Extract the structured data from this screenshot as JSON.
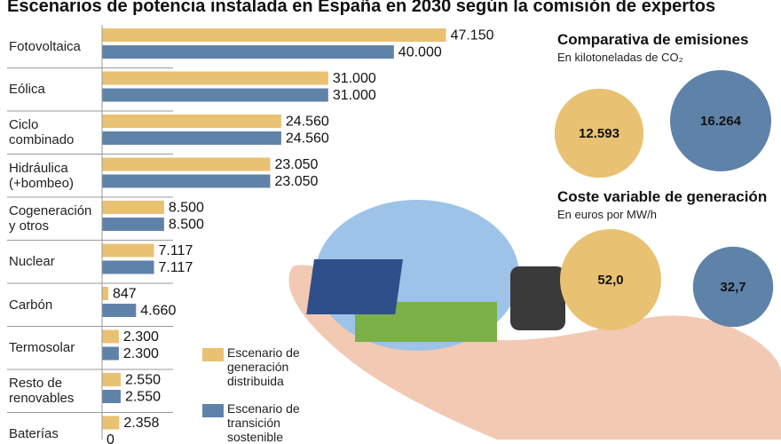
{
  "chart_data": [
    {
      "type": "bar",
      "orientation": "horizontal",
      "title": "Escenarios de potencia instalada en España en 2030 según la comisión de expertos",
      "categories": [
        "Fotovoltaica",
        "Eólica",
        "Ciclo combinado",
        "Hidráulica (+bombeo)",
        "Cogeneración y otros",
        "Nuclear",
        "Carbón",
        "Termosolar",
        "Resto de renovables",
        "Baterías"
      ],
      "series": [
        {
          "name": "Escenario de generación distribuida",
          "color": "#e9c172",
          "values": [
            47150,
            31000,
            24560,
            23050,
            8500,
            7117,
            847,
            2300,
            2550,
            2358
          ],
          "value_labels": [
            "47.150",
            "31.000",
            "24.560",
            "23.050",
            "8.500",
            "7.117",
            "847",
            "2.300",
            "2.550",
            "2.358"
          ]
        },
        {
          "name": "Escenario de transición sostenible",
          "color": "#5f82a9",
          "values": [
            40000,
            31000,
            24560,
            23050,
            8500,
            7117,
            4660,
            2300,
            2550,
            0
          ],
          "value_labels": [
            "40.000",
            "31.000",
            "24.560",
            "23.050",
            "8.500",
            "7.117",
            "4.660",
            "2.300",
            "2.550",
            "0"
          ]
        }
      ],
      "xlim": [
        0,
        50000
      ]
    },
    {
      "type": "circle",
      "title": "Comparativa de emisiones",
      "subtitle": "En kilotoneladas de CO₂",
      "values": [
        12593,
        16264
      ],
      "value_labels": [
        "12.593",
        "16.264"
      ],
      "colors": [
        "#e9c172",
        "#5f82a9"
      ]
    },
    {
      "type": "circle",
      "title": "Coste variable de generación",
      "subtitle": "En euros por MW/h",
      "values": [
        52.0,
        32.7
      ],
      "value_labels": [
        "52,0",
        "32,7"
      ],
      "colors": [
        "#e9c172",
        "#5f82a9"
      ]
    }
  ]
}
